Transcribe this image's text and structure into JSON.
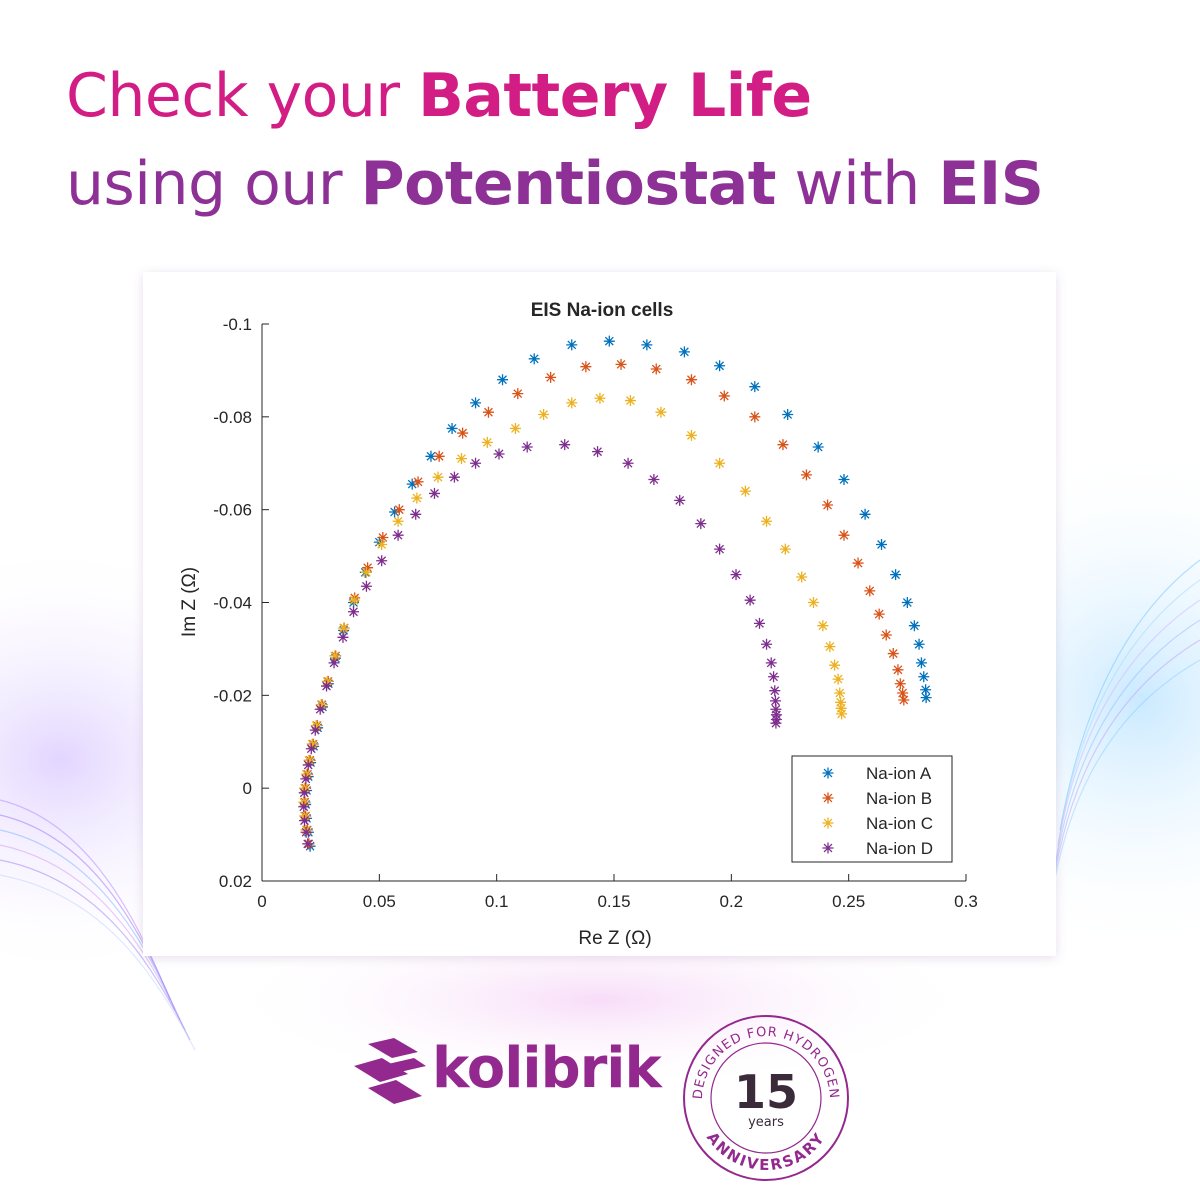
{
  "colors": {
    "pink": "#d21d85",
    "purple": "#8e3196",
    "brand_purple": "#93298e",
    "series_a": "#0072bd",
    "series_b": "#d95319",
    "series_c": "#edb120",
    "series_d": "#7e2f8e"
  },
  "headline": {
    "line1_prefix": "Check your ",
    "line1_bold": "Battery Life",
    "line2_prefix": "using our ",
    "line2_bold": "Potentiostat",
    "line2_mid": " with ",
    "line2_bold2": "EIS"
  },
  "chart_data": {
    "type": "scatter",
    "title": "EIS Na-ion cells",
    "xlabel": "Re Z (Ω)",
    "ylabel": "Im Z (Ω)",
    "xlim": [
      0,
      0.3
    ],
    "ylim": [
      -0.1,
      0.02
    ],
    "y_reversed": true,
    "marker": "asterisk",
    "grid": false,
    "legend_position": "bottom-right",
    "x_ticks": [
      "0",
      "0.05",
      "0.1",
      "0.15",
      "0.2",
      "0.25",
      "0.3"
    ],
    "y_ticks": [
      "-0.1",
      "-0.08",
      "-0.06",
      "-0.04",
      "-0.02",
      "0",
      "0.02"
    ],
    "series": [
      {
        "name": "Na-ion A",
        "points": [
          [
            0.0205,
            0.0125
          ],
          [
            0.0198,
            0.0095
          ],
          [
            0.019,
            0.0065
          ],
          [
            0.0186,
            0.0035
          ],
          [
            0.019,
            0.0005
          ],
          [
            0.0197,
            -0.0025
          ],
          [
            0.0207,
            -0.0055
          ],
          [
            0.022,
            -0.009
          ],
          [
            0.0237,
            -0.013
          ],
          [
            0.0258,
            -0.0175
          ],
          [
            0.0283,
            -0.0225
          ],
          [
            0.0313,
            -0.028
          ],
          [
            0.0348,
            -0.034
          ],
          [
            0.039,
            -0.04
          ],
          [
            0.044,
            -0.0465
          ],
          [
            0.05,
            -0.053
          ],
          [
            0.0565,
            -0.0595
          ],
          [
            0.064,
            -0.0655
          ],
          [
            0.072,
            -0.0715
          ],
          [
            0.081,
            -0.0775
          ],
          [
            0.091,
            -0.083
          ],
          [
            0.1025,
            -0.088
          ],
          [
            0.116,
            -0.0925
          ],
          [
            0.132,
            -0.0955
          ],
          [
            0.148,
            -0.0963
          ],
          [
            0.164,
            -0.0955
          ],
          [
            0.18,
            -0.094
          ],
          [
            0.195,
            -0.091
          ],
          [
            0.21,
            -0.0865
          ],
          [
            0.224,
            -0.0805
          ],
          [
            0.237,
            -0.0735
          ],
          [
            0.248,
            -0.0665
          ],
          [
            0.257,
            -0.059
          ],
          [
            0.264,
            -0.0525
          ],
          [
            0.27,
            -0.046
          ],
          [
            0.275,
            -0.04
          ],
          [
            0.278,
            -0.035
          ],
          [
            0.28,
            -0.031
          ],
          [
            0.281,
            -0.027
          ],
          [
            0.282,
            -0.024
          ],
          [
            0.2828,
            -0.0212
          ],
          [
            0.283,
            -0.0195
          ]
        ]
      },
      {
        "name": "Na-ion B",
        "points": [
          [
            0.02,
            0.012
          ],
          [
            0.0193,
            0.009
          ],
          [
            0.0186,
            0.006
          ],
          [
            0.0183,
            0.003
          ],
          [
            0.0186,
            0.0
          ],
          [
            0.0194,
            -0.003
          ],
          [
            0.0205,
            -0.006
          ],
          [
            0.0218,
            -0.0095
          ],
          [
            0.0235,
            -0.0135
          ],
          [
            0.0256,
            -0.018
          ],
          [
            0.0282,
            -0.023
          ],
          [
            0.0314,
            -0.0285
          ],
          [
            0.035,
            -0.0345
          ],
          [
            0.0395,
            -0.041
          ],
          [
            0.045,
            -0.0475
          ],
          [
            0.0515,
            -0.054
          ],
          [
            0.0585,
            -0.06
          ],
          [
            0.0665,
            -0.066
          ],
          [
            0.0755,
            -0.0715
          ],
          [
            0.0855,
            -0.0765
          ],
          [
            0.0965,
            -0.081
          ],
          [
            0.109,
            -0.085
          ],
          [
            0.123,
            -0.0885
          ],
          [
            0.138,
            -0.0908
          ],
          [
            0.153,
            -0.0913
          ],
          [
            0.168,
            -0.0903
          ],
          [
            0.183,
            -0.088
          ],
          [
            0.197,
            -0.0845
          ],
          [
            0.21,
            -0.08
          ],
          [
            0.222,
            -0.074
          ],
          [
            0.232,
            -0.0675
          ],
          [
            0.241,
            -0.061
          ],
          [
            0.248,
            -0.0545
          ],
          [
            0.254,
            -0.0485
          ],
          [
            0.259,
            -0.0425
          ],
          [
            0.263,
            -0.0375
          ],
          [
            0.266,
            -0.033
          ],
          [
            0.269,
            -0.029
          ],
          [
            0.271,
            -0.0255
          ],
          [
            0.272,
            -0.0225
          ],
          [
            0.273,
            -0.0205
          ],
          [
            0.2735,
            -0.019
          ]
        ]
      },
      {
        "name": "Na-ion C",
        "points": [
          [
            0.0195,
            0.012
          ],
          [
            0.0188,
            0.009
          ],
          [
            0.0181,
            0.006
          ],
          [
            0.0178,
            0.003
          ],
          [
            0.0181,
            0.0
          ],
          [
            0.0189,
            -0.003
          ],
          [
            0.02,
            -0.006
          ],
          [
            0.0214,
            -0.0095
          ],
          [
            0.0231,
            -0.0135
          ],
          [
            0.0252,
            -0.018
          ],
          [
            0.0278,
            -0.023
          ],
          [
            0.031,
            -0.0285
          ],
          [
            0.0348,
            -0.0345
          ],
          [
            0.0393,
            -0.0405
          ],
          [
            0.0445,
            -0.0465
          ],
          [
            0.051,
            -0.0525
          ],
          [
            0.058,
            -0.0575
          ],
          [
            0.066,
            -0.0625
          ],
          [
            0.075,
            -0.067
          ],
          [
            0.085,
            -0.071
          ],
          [
            0.096,
            -0.0745
          ],
          [
            0.108,
            -0.0775
          ],
          [
            0.12,
            -0.0805
          ],
          [
            0.132,
            -0.083
          ],
          [
            0.144,
            -0.084
          ],
          [
            0.157,
            -0.0835
          ],
          [
            0.17,
            -0.081
          ],
          [
            0.183,
            -0.076
          ],
          [
            0.195,
            -0.07
          ],
          [
            0.206,
            -0.064
          ],
          [
            0.215,
            -0.0575
          ],
          [
            0.223,
            -0.0515
          ],
          [
            0.23,
            -0.0455
          ],
          [
            0.235,
            -0.04
          ],
          [
            0.239,
            -0.035
          ],
          [
            0.242,
            -0.0305
          ],
          [
            0.244,
            -0.0265
          ],
          [
            0.2455,
            -0.0235
          ],
          [
            0.2462,
            -0.0205
          ],
          [
            0.2466,
            -0.0185
          ],
          [
            0.2468,
            -0.0172
          ],
          [
            0.247,
            -0.016
          ]
        ]
      },
      {
        "name": "Na-ion D",
        "points": [
          [
            0.0195,
            0.012
          ],
          [
            0.0188,
            0.0095
          ],
          [
            0.0181,
            0.007
          ],
          [
            0.0178,
            0.004
          ],
          [
            0.018,
            0.001
          ],
          [
            0.0187,
            -0.002
          ],
          [
            0.0197,
            -0.005
          ],
          [
            0.021,
            -0.0085
          ],
          [
            0.0227,
            -0.0125
          ],
          [
            0.0248,
            -0.017
          ],
          [
            0.0275,
            -0.022
          ],
          [
            0.0307,
            -0.027
          ],
          [
            0.0345,
            -0.0325
          ],
          [
            0.039,
            -0.038
          ],
          [
            0.0445,
            -0.0435
          ],
          [
            0.051,
            -0.049
          ],
          [
            0.058,
            -0.0545
          ],
          [
            0.0655,
            -0.059
          ],
          [
            0.0735,
            -0.0635
          ],
          [
            0.082,
            -0.067
          ],
          [
            0.091,
            -0.07
          ],
          [
            0.101,
            -0.072
          ],
          [
            0.113,
            -0.0735
          ],
          [
            0.129,
            -0.074
          ],
          [
            0.143,
            -0.0725
          ],
          [
            0.156,
            -0.07
          ],
          [
            0.167,
            -0.0665
          ],
          [
            0.178,
            -0.062
          ],
          [
            0.187,
            -0.057
          ],
          [
            0.195,
            -0.0515
          ],
          [
            0.202,
            -0.046
          ],
          [
            0.208,
            -0.0405
          ],
          [
            0.212,
            -0.0355
          ],
          [
            0.215,
            -0.031
          ],
          [
            0.217,
            -0.027
          ],
          [
            0.218,
            -0.024
          ],
          [
            0.2185,
            -0.021
          ],
          [
            0.2188,
            -0.0188
          ],
          [
            0.219,
            -0.017
          ],
          [
            0.2192,
            -0.0158
          ],
          [
            0.2192,
            -0.0148
          ],
          [
            0.219,
            -0.014
          ]
        ]
      }
    ]
  },
  "logo": {
    "wordmark": "kolibrik",
    "badge": {
      "arc_text": "DESIGNED FOR HYDROGEN",
      "number": "15",
      "years": "years",
      "anniversary": "ANNIVERSARY"
    }
  }
}
